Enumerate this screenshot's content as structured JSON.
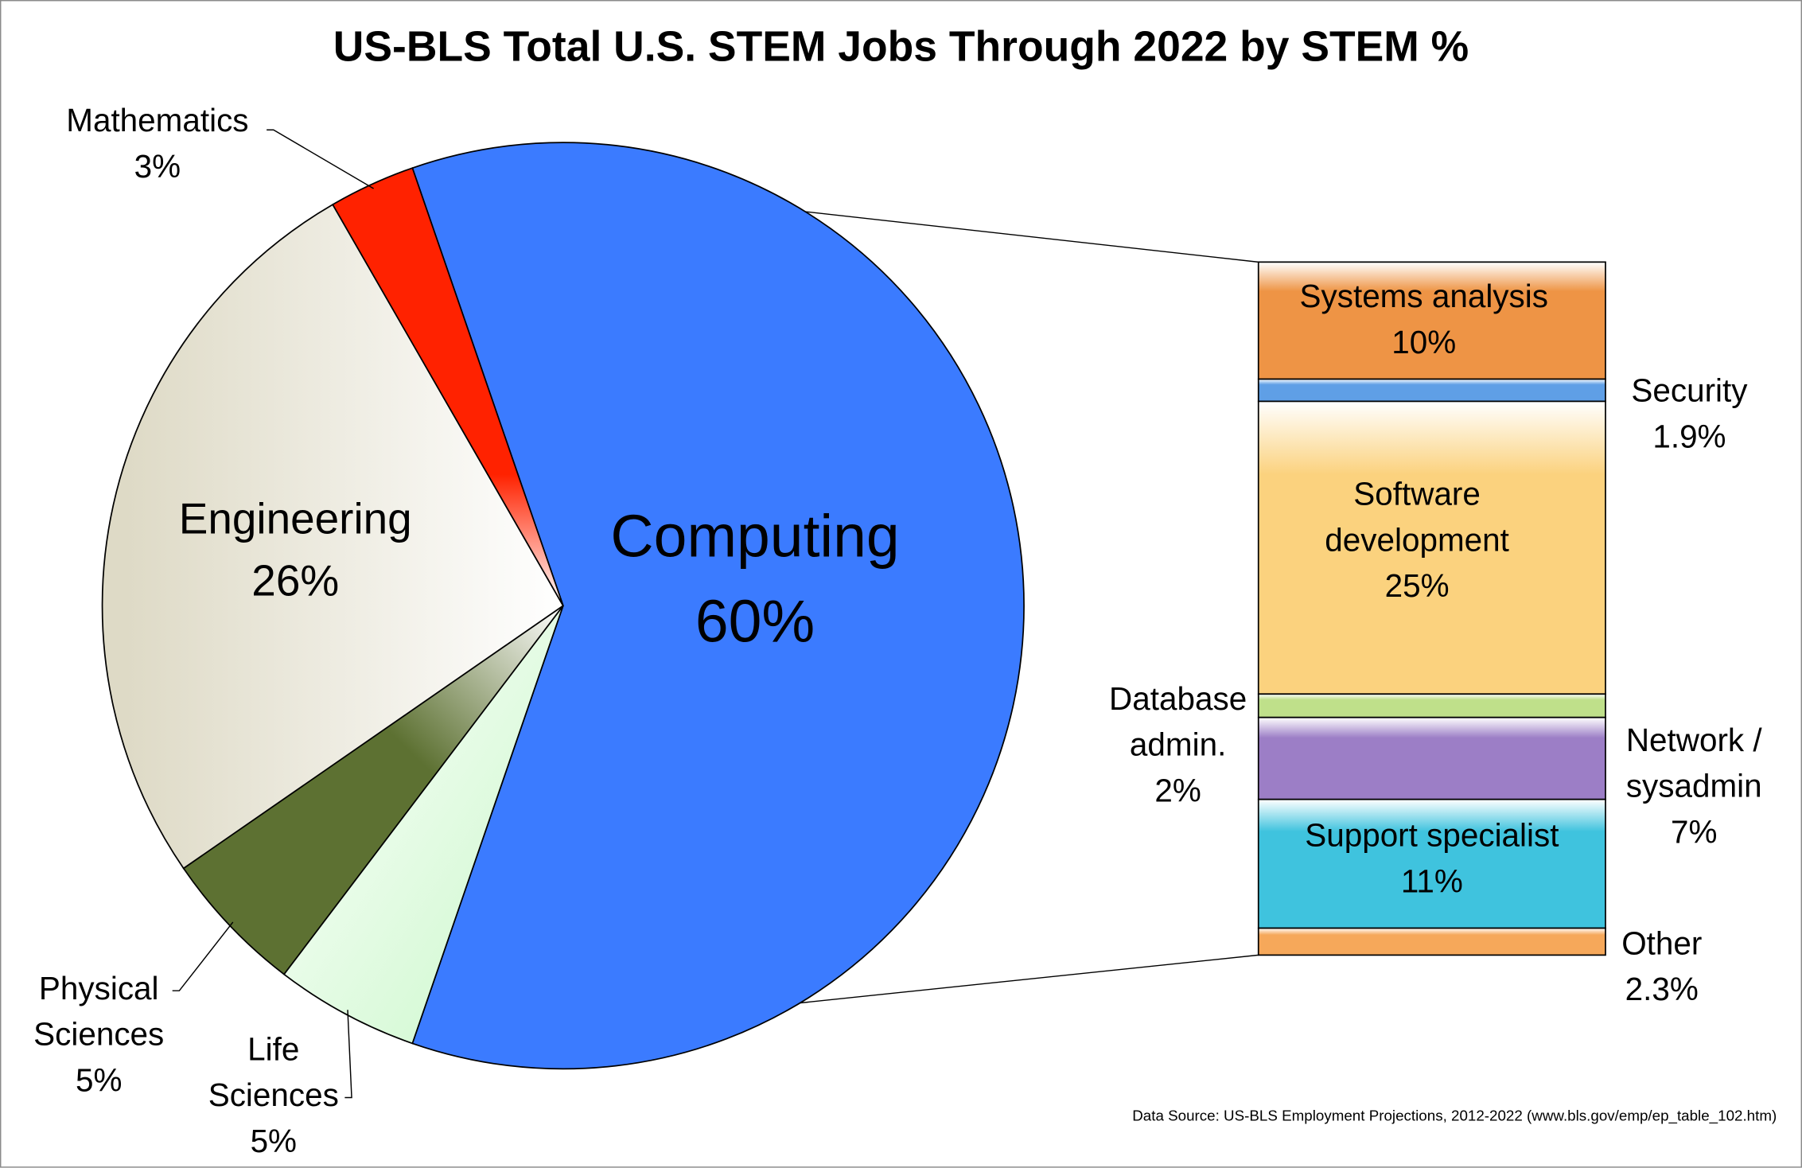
{
  "chart_data": [
    {
      "type": "pie",
      "title": "US-BLS Total U.S. STEM Jobs Through 2022 by STEM %",
      "source": "Data Source: US-BLS Employment Projections, 2012-2022 (www.bls.gov/emp/ep_table_102.htm)",
      "categories": [
        "Computing",
        "Life Sciences",
        "Physical Sciences",
        "Engineering",
        "Mathematics"
      ],
      "values": [
        60,
        5,
        5,
        26,
        3
      ],
      "value_labels": [
        "60%",
        "5%",
        "5%",
        "26%",
        "3%"
      ],
      "colors": [
        "#3b7bff",
        "#d4f9d4",
        "#5d7132",
        "#dedac6",
        "#ff2200"
      ]
    },
    {
      "type": "bar",
      "categories": [
        "Systems analysis",
        "Security",
        "Software development",
        "Database admin.",
        "Network / sysadmin",
        "Support specialist",
        "Other"
      ],
      "values": [
        10,
        1.9,
        25,
        2,
        7,
        11,
        2.3
      ],
      "value_labels": [
        "10%",
        "1.9%",
        "25%",
        "2%",
        "7%",
        "11%",
        "2.3%"
      ],
      "colors": [
        "#ee9445",
        "#5f9fe6",
        "#fbd27e",
        "#bfe08a",
        "#9c7ec6",
        "#3fc3de",
        "#f6a85a"
      ]
    }
  ]
}
